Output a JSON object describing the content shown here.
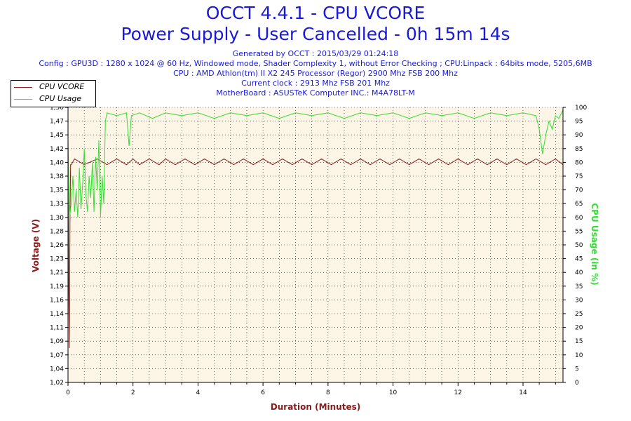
{
  "title": "OCCT 4.4.1 - CPU VCORE",
  "subtitle": "Power Supply - User Cancelled - 0h 15m 14s",
  "info_lines": [
    "Generated by OCCT : 2015/03/29 01:24:18",
    "Config : GPU3D : 1280 x 1024 @ 60 Hz, Windowed mode, Shader Complexity 1, without Error Checking ; CPU:Linpack : 64bits mode, 5205,6MB",
    "CPU : AMD Athlon(tm) II X2 245 Processor (Regor) 2900 Mhz FSB 200 Mhz",
    "Current clock : 2913 Mhz FSB 201 Mhz",
    "MotherBoard : ASUSTeK Computer INC.: M4A78LT-M"
  ],
  "legend": [
    {
      "label": "CPU VCORE",
      "color": "#8b1a1a"
    },
    {
      "label": "CPU Usage",
      "color": "#33dd33"
    }
  ],
  "chart_data": {
    "type": "line",
    "xlabel": "Duration (Minutes)",
    "ylabel": "Voltage (V)",
    "ylabel_right": "CPU Usage (in %)",
    "xlim": [
      0,
      15.23
    ],
    "ylim": [
      1.02,
      1.5
    ],
    "ylim_right": [
      0,
      100
    ],
    "x_ticks": [
      "0",
      "2",
      "4",
      "6",
      "8",
      "10",
      "12",
      "14"
    ],
    "x_tick_values": [
      0,
      2,
      4,
      6,
      8,
      10,
      12,
      14
    ],
    "y_ticks": [
      "1,02",
      "1,04",
      "1,07",
      "1,09",
      "1,11",
      "1,14",
      "1,16",
      "1,19",
      "1,21",
      "1,23",
      "1,26",
      "1,28",
      "1,30",
      "1,33",
      "1,35",
      "1,38",
      "1,40",
      "1,42",
      "1,45",
      "1,47",
      "1,50"
    ],
    "y_tick_values": [
      1.02,
      1.044,
      1.068,
      1.092,
      1.116,
      1.14,
      1.164,
      1.188,
      1.212,
      1.236,
      1.26,
      1.284,
      1.308,
      1.332,
      1.356,
      1.38,
      1.404,
      1.428,
      1.452,
      1.476,
      1.5
    ],
    "y2_ticks": [
      "0",
      "5",
      "10",
      "15",
      "20",
      "25",
      "30",
      "35",
      "40",
      "45",
      "50",
      "55",
      "60",
      "65",
      "70",
      "75",
      "80",
      "85",
      "90",
      "95",
      "100"
    ],
    "y2_tick_values": [
      0,
      5,
      10,
      15,
      20,
      25,
      30,
      35,
      40,
      45,
      50,
      55,
      60,
      65,
      70,
      75,
      80,
      85,
      90,
      95,
      100
    ],
    "grid": true,
    "legend_position": "top-left",
    "series": [
      {
        "name": "CPU VCORE",
        "axis": "left",
        "color": "#8b1a1a",
        "x": [
          0,
          0.02,
          0.04,
          0.06,
          0.08,
          0.1,
          0.2,
          0.5,
          0.9,
          1.2,
          1.5,
          1.8,
          2.0,
          2.2,
          2.5,
          2.8,
          3.0,
          3.3,
          3.6,
          3.9,
          4.2,
          4.5,
          4.8,
          5.1,
          5.4,
          5.7,
          6.0,
          6.3,
          6.6,
          6.9,
          7.2,
          7.5,
          7.8,
          8.1,
          8.4,
          8.7,
          9.0,
          9.3,
          9.6,
          9.9,
          10.2,
          10.5,
          10.8,
          11.1,
          11.4,
          11.7,
          12.0,
          12.3,
          12.6,
          12.9,
          13.2,
          13.5,
          13.8,
          14.1,
          14.4,
          14.7,
          15.0,
          15.23
        ],
        "values": [
          1.4,
          1.2,
          1.08,
          1.3,
          1.4,
          1.4,
          1.41,
          1.4,
          1.41,
          1.4,
          1.41,
          1.4,
          1.41,
          1.4,
          1.41,
          1.4,
          1.41,
          1.4,
          1.41,
          1.4,
          1.41,
          1.4,
          1.41,
          1.4,
          1.41,
          1.4,
          1.41,
          1.4,
          1.41,
          1.4,
          1.41,
          1.4,
          1.41,
          1.4,
          1.41,
          1.4,
          1.41,
          1.4,
          1.41,
          1.4,
          1.41,
          1.4,
          1.41,
          1.4,
          1.41,
          1.4,
          1.41,
          1.4,
          1.41,
          1.4,
          1.41,
          1.4,
          1.41,
          1.4,
          1.41,
          1.4,
          1.41,
          1.4
        ]
      },
      {
        "name": "CPU Usage",
        "axis": "right",
        "color": "#33dd33",
        "x": [
          0,
          0.05,
          0.1,
          0.15,
          0.2,
          0.25,
          0.3,
          0.35,
          0.4,
          0.45,
          0.5,
          0.55,
          0.6,
          0.65,
          0.7,
          0.75,
          0.8,
          0.85,
          0.9,
          0.95,
          1.0,
          1.05,
          1.1,
          1.15,
          1.2,
          1.5,
          1.8,
          1.88,
          1.95,
          2.2,
          2.6,
          3.0,
          3.5,
          4.0,
          4.5,
          5.0,
          5.5,
          6.0,
          6.5,
          7.0,
          7.5,
          8.0,
          8.5,
          9.0,
          9.5,
          10.0,
          10.5,
          11.0,
          11.5,
          12.0,
          12.5,
          13.0,
          13.5,
          14.0,
          14.4,
          14.5,
          14.6,
          14.7,
          14.8,
          14.9,
          15.0,
          15.1,
          15.23
        ],
        "values": [
          88,
          60,
          65,
          75,
          62,
          70,
          60,
          78,
          63,
          72,
          85,
          68,
          62,
          75,
          67,
          80,
          62,
          82,
          70,
          88,
          60,
          75,
          65,
          95,
          98,
          97,
          98,
          86,
          97,
          98,
          96,
          98,
          97,
          98,
          96,
          98,
          97,
          98,
          96,
          98,
          97,
          98,
          96,
          98,
          97,
          98,
          96,
          98,
          97,
          98,
          96,
          98,
          97,
          98,
          97,
          92,
          83,
          90,
          95,
          92,
          97,
          96,
          99
        ]
      }
    ]
  }
}
